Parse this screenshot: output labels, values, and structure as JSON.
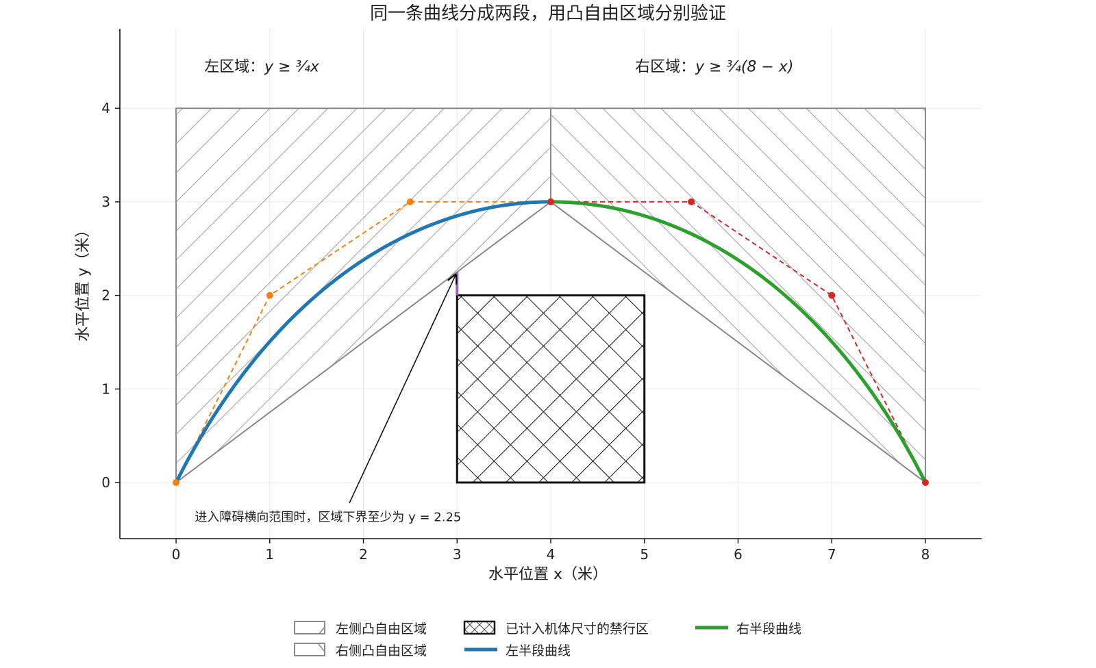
{
  "chart_data": {
    "type": "line",
    "title": "同一条曲线分成两段，用凸自由区域分别验证",
    "xlabel": "水平位置 x（米）",
    "ylabel": "水平位置 y（米）",
    "xlim": [
      -0.6,
      8.6
    ],
    "ylim": [
      -0.6,
      4.85
    ],
    "xticks": [
      0,
      1,
      2,
      3,
      4,
      5,
      6,
      7,
      8
    ],
    "yticks": [
      0,
      1,
      2,
      3,
      4
    ],
    "grid": true,
    "legend_position": "bottom-center",
    "regions": [
      {
        "name": "左侧凸自由区域",
        "label_prefix": "左区域：",
        "label_formula": "y ≥ ¾x",
        "label_anchor": [
          0.3,
          4.45
        ],
        "polygon": [
          [
            0,
            0
          ],
          [
            4,
            3
          ],
          [
            4,
            4
          ],
          [
            0,
            4
          ]
        ],
        "hatch": "forward-diagonal",
        "color": "#888888"
      },
      {
        "name": "右侧凸自由区域",
        "label_prefix": "右区域：",
        "label_formula": "y ≥ ¾(8 − x)",
        "label_anchor": [
          4.9,
          4.45
        ],
        "polygon": [
          [
            4,
            3
          ],
          [
            8,
            0
          ],
          [
            8,
            4
          ],
          [
            4,
            4
          ]
        ],
        "hatch": "back-diagonal",
        "color": "#888888"
      }
    ],
    "obstacle": {
      "name": "已计入机体尺寸的禁行区",
      "x": [
        3,
        5
      ],
      "y": [
        0,
        2
      ],
      "hatch": "cross",
      "color": "#111111"
    },
    "series": [
      {
        "name": "左半段曲线",
        "color": "#1f77b4",
        "control_points": [
          [
            0,
            0
          ],
          [
            1,
            2
          ],
          [
            2.5,
            3
          ],
          [
            4,
            3
          ]
        ],
        "control_color": "#ff7f0e"
      },
      {
        "name": "右半段曲线",
        "color": "#2ca02c",
        "control_points": [
          [
            4,
            3
          ],
          [
            5.5,
            3
          ],
          [
            7,
            2
          ],
          [
            8,
            0
          ]
        ],
        "control_color": "#d62728"
      }
    ],
    "clearance_marker": {
      "x": 3,
      "y": [
        2,
        2.25
      ],
      "color": "#9467bd"
    },
    "annotation": {
      "text": "进入障碍横向范围时，区域下界至少为 y = 2.25",
      "text_anchor": [
        0.2,
        -0.37
      ],
      "arrow_from": [
        1.85,
        -0.22
      ],
      "arrow_to": [
        3,
        2.25
      ]
    },
    "legend": [
      {
        "label": "左侧凸自由区域",
        "kind": "left-region"
      },
      {
        "label": "右侧凸自由区域",
        "kind": "right-region"
      },
      {
        "label": "已计入机体尺寸的禁行区",
        "kind": "obstacle"
      },
      {
        "label": "左半段曲线",
        "kind": "left-curve"
      },
      {
        "label": "右半段曲线",
        "kind": "right-curve"
      }
    ]
  }
}
